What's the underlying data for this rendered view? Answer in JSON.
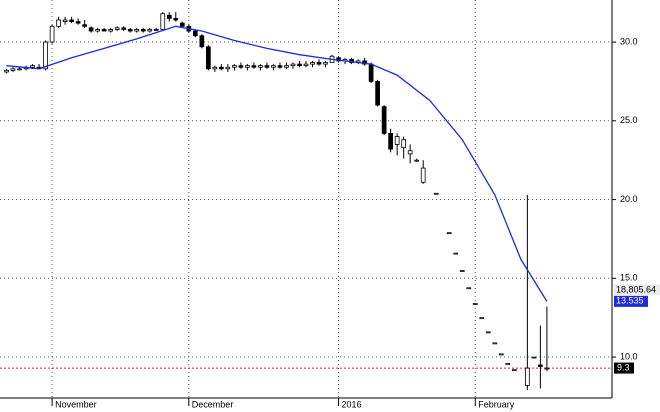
{
  "chart_data": {
    "type": "candlestick",
    "x": [
      0,
      1,
      2,
      3,
      4,
      5,
      6,
      7,
      8,
      9,
      10,
      11,
      12,
      13,
      14,
      15,
      16,
      17,
      18,
      19,
      20,
      21,
      22,
      23,
      24,
      25,
      26,
      27,
      28,
      29,
      30,
      31,
      32,
      33,
      34,
      35,
      36,
      37,
      38,
      39,
      40,
      41,
      42,
      43,
      44,
      45,
      46,
      47,
      48,
      49,
      50,
      51,
      52,
      53,
      54,
      55,
      56,
      57,
      58,
      59,
      60,
      61,
      62,
      63,
      64,
      66,
      68,
      69,
      70,
      71,
      72,
      73,
      74,
      75,
      76,
      77,
      78,
      80,
      81,
      82,
      83
    ],
    "open": [
      28.1,
      28.2,
      28.3,
      28.3,
      28.4,
      28.4,
      28.3,
      30.0,
      31.0,
      31.3,
      31.4,
      31.3,
      31.1,
      30.9,
      30.7,
      30.8,
      30.7,
      30.8,
      30.9,
      30.8,
      30.7,
      30.8,
      30.7,
      30.8,
      30.8,
      31.7,
      31.5,
      31.2,
      31.0,
      30.7,
      30.4,
      29.7,
      28.3,
      28.4,
      28.3,
      28.4,
      28.5,
      28.4,
      28.5,
      28.4,
      28.5,
      28.4,
      28.5,
      28.4,
      28.5,
      28.6,
      28.5,
      28.6,
      28.7,
      28.6,
      28.7,
      29.0,
      28.8,
      28.9,
      28.7,
      28.8,
      28.6,
      27.5,
      25.9,
      24.2,
      23.5,
      23.3,
      22.9,
      22.5,
      21.1,
      20.4,
      17.9,
      16.6,
      15.5,
      14.4,
      13.4,
      12.5,
      11.6,
      10.9,
      10.2,
      9.6,
      9.2,
      8.2,
      10.0,
      9.5,
      9.3
    ],
    "high": [
      28.3,
      28.4,
      28.4,
      28.5,
      28.6,
      28.6,
      30.1,
      31.1,
      31.6,
      31.6,
      31.6,
      31.5,
      31.4,
      31.0,
      30.9,
      30.9,
      30.9,
      31.0,
      31.0,
      30.9,
      30.9,
      30.9,
      30.9,
      30.9,
      31.9,
      31.9,
      31.9,
      31.3,
      31.1,
      30.8,
      30.5,
      29.8,
      28.5,
      28.6,
      28.6,
      28.6,
      28.7,
      28.6,
      28.7,
      28.6,
      28.7,
      28.6,
      28.7,
      28.7,
      28.7,
      28.8,
      28.8,
      28.8,
      28.9,
      28.8,
      29.2,
      29.1,
      29.0,
      29.0,
      28.9,
      29.0,
      28.7,
      27.6,
      26.0,
      24.5,
      24.2,
      24.0,
      23.5,
      22.6,
      22.5,
      20.4,
      17.9,
      16.6,
      15.5,
      14.4,
      13.4,
      12.5,
      11.6,
      10.9,
      10.2,
      9.6,
      9.2,
      20.3,
      10.0,
      12.0,
      13.2
    ],
    "low": [
      28.0,
      28.1,
      28.2,
      28.2,
      28.3,
      28.3,
      28.2,
      29.9,
      30.9,
      31.1,
      31.2,
      31.1,
      30.9,
      30.6,
      30.6,
      30.7,
      30.6,
      30.7,
      30.7,
      30.6,
      30.6,
      30.6,
      30.6,
      30.7,
      30.7,
      31.3,
      31.3,
      30.9,
      30.6,
      30.3,
      29.6,
      28.2,
      28.1,
      28.2,
      28.1,
      28.2,
      28.3,
      28.2,
      28.3,
      28.2,
      28.3,
      28.2,
      28.3,
      28.3,
      28.3,
      28.4,
      28.4,
      28.4,
      28.5,
      28.4,
      28.7,
      28.7,
      28.6,
      28.6,
      28.6,
      28.5,
      27.4,
      25.9,
      24.1,
      23.0,
      22.8,
      22.6,
      22.3,
      22.4,
      21.0,
      20.4,
      17.9,
      16.6,
      15.5,
      14.4,
      13.4,
      12.5,
      11.6,
      10.9,
      10.2,
      9.6,
      9.2,
      7.9,
      10.0,
      8.0,
      9.1
    ],
    "close": [
      28.2,
      28.3,
      28.3,
      28.4,
      28.5,
      28.3,
      30.0,
      31.0,
      31.4,
      31.4,
      31.3,
      31.2,
      31.0,
      30.7,
      30.8,
      30.7,
      30.8,
      30.9,
      30.8,
      30.7,
      30.8,
      30.7,
      30.8,
      30.8,
      31.8,
      31.5,
      31.4,
      31.0,
      30.7,
      30.4,
      29.7,
      28.3,
      28.4,
      28.3,
      28.4,
      28.5,
      28.4,
      28.5,
      28.4,
      28.5,
      28.4,
      28.5,
      28.4,
      28.5,
      28.6,
      28.5,
      28.6,
      28.7,
      28.6,
      28.7,
      29.1,
      28.8,
      28.9,
      28.7,
      28.8,
      28.6,
      27.5,
      26.0,
      24.2,
      23.2,
      24.0,
      23.8,
      23.1,
      22.5,
      22.0,
      20.4,
      17.9,
      16.6,
      15.5,
      14.4,
      13.4,
      12.5,
      11.6,
      10.9,
      10.2,
      9.6,
      9.2,
      9.3,
      10.0,
      9.4,
      9.3
    ],
    "up_color": "#ffffff",
    "down_color": "#000000",
    "moving_average": {
      "color": "#1f2bd6",
      "x": [
        0,
        5,
        10,
        15,
        20,
        26,
        30,
        35,
        40,
        45,
        50,
        56,
        60,
        65,
        70,
        75,
        79,
        83
      ],
      "values": [
        28.5,
        28.3,
        29.0,
        29.6,
        30.2,
        31.0,
        30.7,
        30.1,
        29.6,
        29.2,
        28.9,
        28.6,
        27.9,
        26.3,
        23.8,
        20.3,
        16.2,
        13.535
      ],
      "last_label": "13.535"
    },
    "last_price": {
      "value": 9.3,
      "label": "9.3",
      "color": "#d62020"
    },
    "volume_label": "18,805.64",
    "xlim": [
      -1,
      93
    ],
    "ylim": [
      7.4,
      32.67
    ],
    "xticks": [
      {
        "value": 7,
        "label": "November"
      },
      {
        "value": 28,
        "label": "December"
      },
      {
        "value": 51,
        "label": "2016"
      },
      {
        "value": 72,
        "label": "February"
      }
    ],
    "yticks": [
      {
        "value": 10,
        "label": "10.0"
      },
      {
        "value": 15,
        "label": "15.0"
      },
      {
        "value": 20,
        "label": "20.0"
      },
      {
        "value": 25,
        "label": "25.0"
      },
      {
        "value": 30,
        "label": "30.0"
      }
    ],
    "grid": true
  }
}
